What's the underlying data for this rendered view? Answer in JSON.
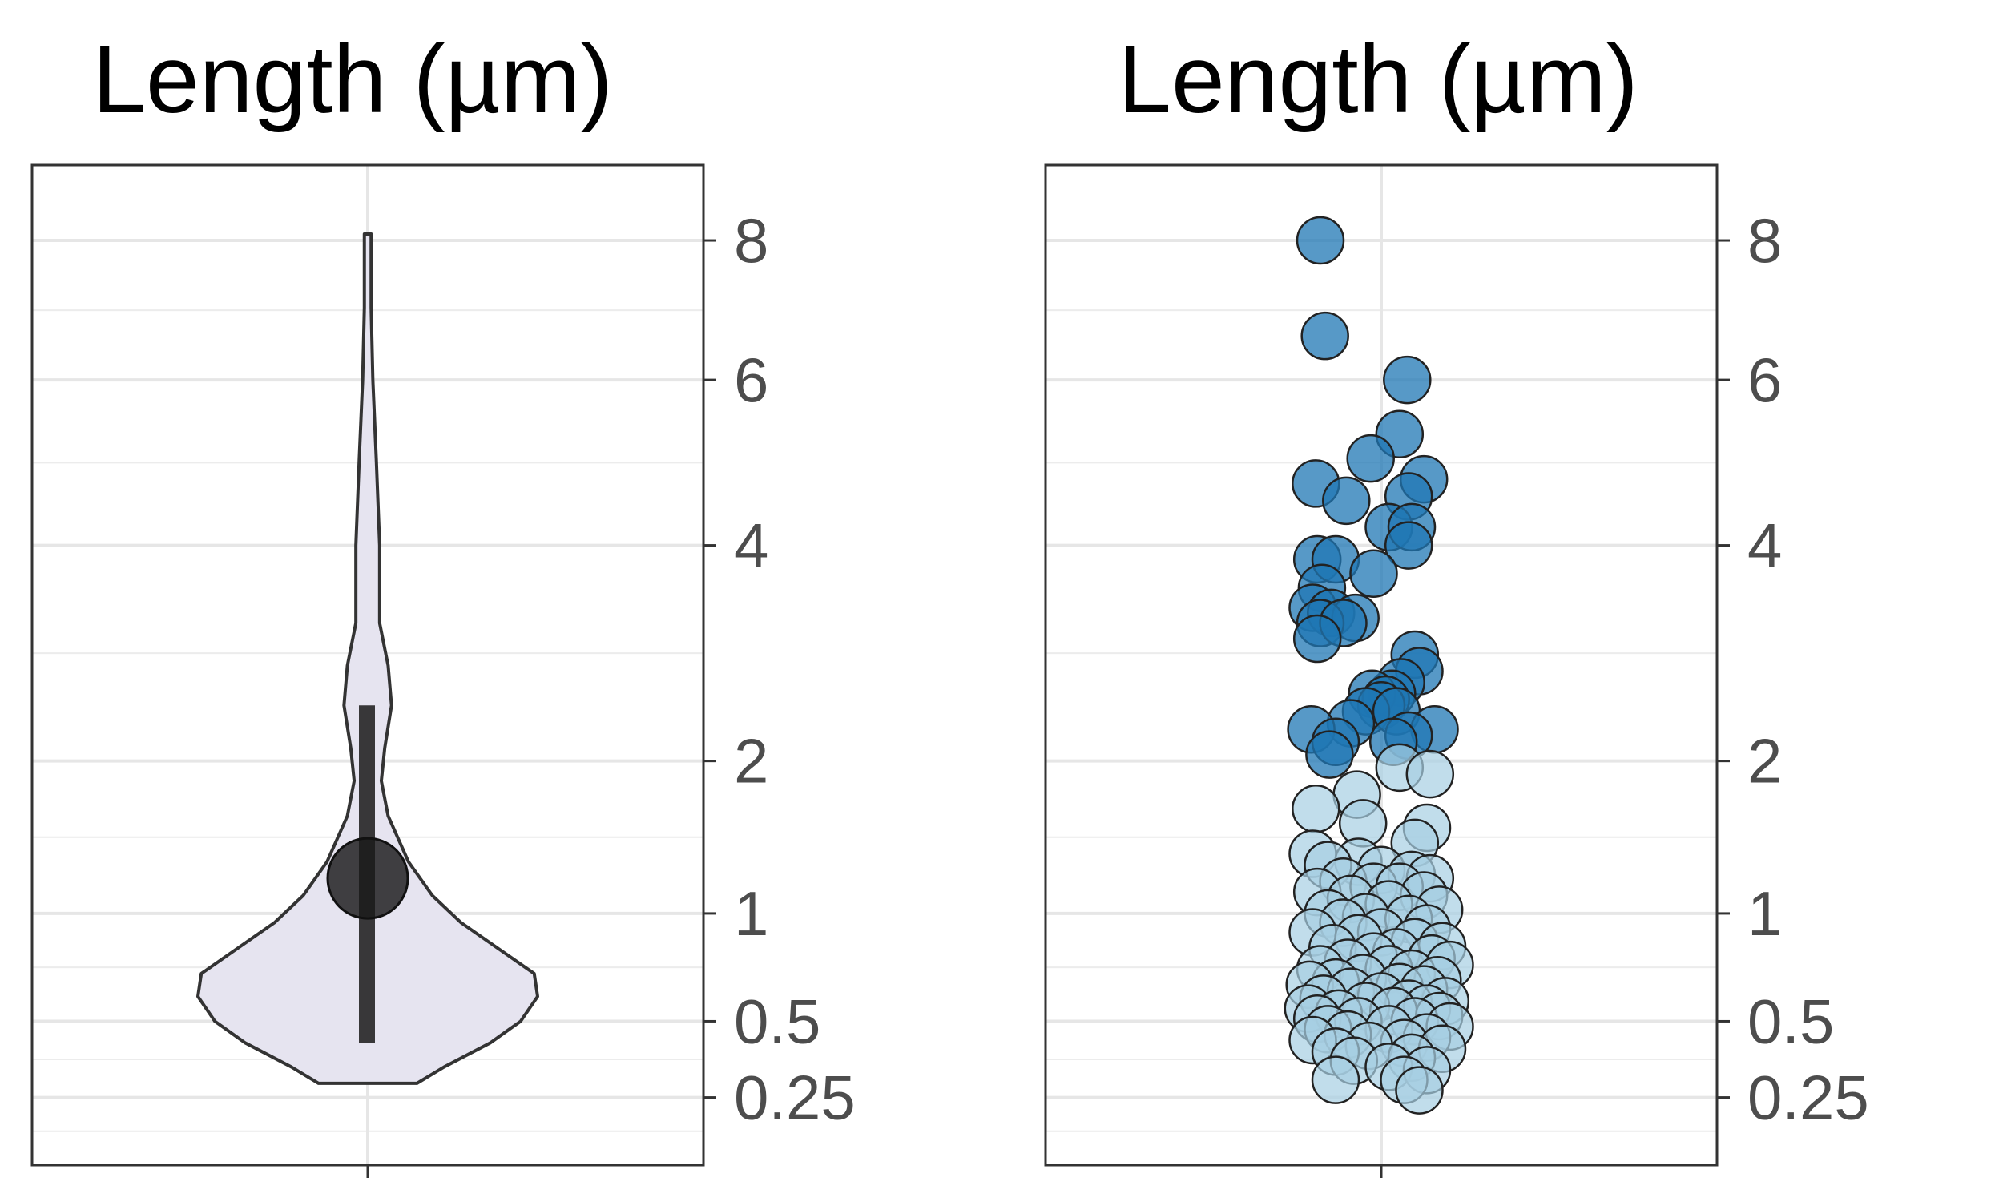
{
  "chart_data": [
    {
      "type": "violin",
      "title": "Length (µm)",
      "y_scale": "sqrt",
      "ylim": [
        0.1,
        9.2
      ],
      "y_ticks": [
        0.25,
        0.5,
        1,
        2,
        4,
        6,
        8
      ],
      "y_tick_labels": [
        "0.25",
        "0.5",
        "1",
        "2",
        "4",
        "6",
        "8"
      ],
      "y_axis_position": "right",
      "grid": true,
      "violin_fill": "#e6e4f0",
      "violin_stroke": "#333333",
      "summary": {
        "mean": 1.2,
        "range_low": 0.42,
        "range_high": 2.45,
        "color": "#1a1a1a"
      },
      "density_profile": [
        {
          "y": 0.29,
          "width": 0.29
        },
        {
          "y": 0.34,
          "width": 0.45
        },
        {
          "y": 0.42,
          "width": 0.72
        },
        {
          "y": 0.5,
          "width": 0.9
        },
        {
          "y": 0.6,
          "width": 1.0
        },
        {
          "y": 0.7,
          "width": 0.98
        },
        {
          "y": 0.8,
          "width": 0.8
        },
        {
          "y": 0.95,
          "width": 0.55
        },
        {
          "y": 1.1,
          "width": 0.38
        },
        {
          "y": 1.3,
          "width": 0.24
        },
        {
          "y": 1.6,
          "width": 0.12
        },
        {
          "y": 1.85,
          "width": 0.08
        },
        {
          "y": 2.1,
          "width": 0.1
        },
        {
          "y": 2.45,
          "width": 0.14
        },
        {
          "y": 2.8,
          "width": 0.12
        },
        {
          "y": 3.2,
          "width": 0.07
        },
        {
          "y": 4.0,
          "width": 0.07
        },
        {
          "y": 5.0,
          "width": 0.05
        },
        {
          "y": 6.0,
          "width": 0.03
        },
        {
          "y": 7.0,
          "width": 0.02
        },
        {
          "y": 8.1,
          "width": 0.02
        }
      ]
    },
    {
      "type": "scatter",
      "title": "Length (µm)",
      "y_scale": "sqrt",
      "ylim": [
        0.1,
        9.2
      ],
      "y_ticks": [
        0.25,
        0.5,
        1,
        2,
        4,
        6,
        8
      ],
      "y_tick_labels": [
        "0.25",
        "0.5",
        "1",
        "2",
        "4",
        "6",
        "8"
      ],
      "y_axis_position": "right",
      "grid": true,
      "colors": {
        "high": "#1f77b4",
        "low": "#a6cee3",
        "stroke": "#222222"
      },
      "color_threshold": 2.0,
      "points": [
        {
          "x": -0.4,
          "y": 8.0
        },
        {
          "x": -0.37,
          "y": 6.6
        },
        {
          "x": 0.17,
          "y": 6.0
        },
        {
          "x": 0.12,
          "y": 5.3
        },
        {
          "x": -0.07,
          "y": 5.0
        },
        {
          "x": 0.28,
          "y": 4.75
        },
        {
          "x": -0.43,
          "y": 4.7
        },
        {
          "x": 0.18,
          "y": 4.55
        },
        {
          "x": -0.23,
          "y": 4.5
        },
        {
          "x": 0.05,
          "y": 4.2
        },
        {
          "x": 0.2,
          "y": 4.2
        },
        {
          "x": 0.18,
          "y": 4.0
        },
        {
          "x": -0.42,
          "y": 3.85
        },
        {
          "x": -0.3,
          "y": 3.85
        },
        {
          "x": -0.05,
          "y": 3.7
        },
        {
          "x": -0.39,
          "y": 3.55
        },
        {
          "x": -0.45,
          "y": 3.35
        },
        {
          "x": -0.33,
          "y": 3.3
        },
        {
          "x": -0.17,
          "y": 3.25
        },
        {
          "x": -0.4,
          "y": 3.2
        },
        {
          "x": -0.25,
          "y": 3.2
        },
        {
          "x": -0.42,
          "y": 3.05
        },
        {
          "x": 0.22,
          "y": 2.9
        },
        {
          "x": 0.25,
          "y": 2.75
        },
        {
          "x": 0.13,
          "y": 2.65
        },
        {
          "x": 0.07,
          "y": 2.55
        },
        {
          "x": -0.06,
          "y": 2.55
        },
        {
          "x": 0.03,
          "y": 2.5
        },
        {
          "x": 0.0,
          "y": 2.45
        },
        {
          "x": -0.1,
          "y": 2.4
        },
        {
          "x": 0.1,
          "y": 2.4
        },
        {
          "x": -0.2,
          "y": 2.3
        },
        {
          "x": -0.46,
          "y": 2.25
        },
        {
          "x": 0.35,
          "y": 2.25
        },
        {
          "x": 0.18,
          "y": 2.2
        },
        {
          "x": -0.3,
          "y": 2.15
        },
        {
          "x": 0.08,
          "y": 2.15
        },
        {
          "x": -0.34,
          "y": 2.05
        },
        {
          "x": 0.12,
          "y": 1.95
        },
        {
          "x": 0.32,
          "y": 1.9
        },
        {
          "x": -0.16,
          "y": 1.75
        },
        {
          "x": -0.43,
          "y": 1.65
        },
        {
          "x": -0.12,
          "y": 1.55
        },
        {
          "x": 0.3,
          "y": 1.52
        },
        {
          "x": 0.22,
          "y": 1.42
        },
        {
          "x": -0.45,
          "y": 1.35
        },
        {
          "x": -0.15,
          "y": 1.3
        },
        {
          "x": -0.35,
          "y": 1.28
        },
        {
          "x": 0.0,
          "y": 1.25
        },
        {
          "x": 0.2,
          "y": 1.22
        },
        {
          "x": 0.32,
          "y": 1.2
        },
        {
          "x": -0.25,
          "y": 1.18
        },
        {
          "x": -0.05,
          "y": 1.15
        },
        {
          "x": 0.12,
          "y": 1.15
        },
        {
          "x": -0.42,
          "y": 1.12
        },
        {
          "x": 0.28,
          "y": 1.1
        },
        {
          "x": -0.2,
          "y": 1.08
        },
        {
          "x": 0.05,
          "y": 1.05
        },
        {
          "x": 0.38,
          "y": 1.02
        },
        {
          "x": -0.35,
          "y": 1.0
        },
        {
          "x": -0.1,
          "y": 0.98
        },
        {
          "x": 0.18,
          "y": 0.97
        },
        {
          "x": -0.25,
          "y": 0.95
        },
        {
          "x": 0.3,
          "y": 0.92
        },
        {
          "x": -0.45,
          "y": 0.9
        },
        {
          "x": 0.0,
          "y": 0.9
        },
        {
          "x": -0.15,
          "y": 0.87
        },
        {
          "x": 0.22,
          "y": 0.85
        },
        {
          "x": 0.4,
          "y": 0.83
        },
        {
          "x": -0.32,
          "y": 0.82
        },
        {
          "x": 0.1,
          "y": 0.8
        },
        {
          "x": -0.05,
          "y": 0.78
        },
        {
          "x": 0.33,
          "y": 0.77
        },
        {
          "x": -0.22,
          "y": 0.75
        },
        {
          "x": 0.45,
          "y": 0.74
        },
        {
          "x": -0.4,
          "y": 0.72
        },
        {
          "x": 0.05,
          "y": 0.72
        },
        {
          "x": 0.2,
          "y": 0.7
        },
        {
          "x": -0.12,
          "y": 0.68
        },
        {
          "x": 0.37,
          "y": 0.67
        },
        {
          "x": -0.3,
          "y": 0.66
        },
        {
          "x": -0.47,
          "y": 0.65
        },
        {
          "x": 0.12,
          "y": 0.64
        },
        {
          "x": 0.28,
          "y": 0.63
        },
        {
          "x": -0.2,
          "y": 0.62
        },
        {
          "x": 0.0,
          "y": 0.6
        },
        {
          "x": -0.38,
          "y": 0.59
        },
        {
          "x": 0.42,
          "y": 0.58
        },
        {
          "x": 0.18,
          "y": 0.57
        },
        {
          "x": -0.1,
          "y": 0.56
        },
        {
          "x": -0.48,
          "y": 0.55
        },
        {
          "x": 0.3,
          "y": 0.55
        },
        {
          "x": 0.08,
          "y": 0.54
        },
        {
          "x": -0.28,
          "y": 0.53
        },
        {
          "x": 0.38,
          "y": 0.52
        },
        {
          "x": -0.42,
          "y": 0.51
        },
        {
          "x": -0.15,
          "y": 0.5
        },
        {
          "x": 0.22,
          "y": 0.5
        },
        {
          "x": 0.45,
          "y": 0.48
        },
        {
          "x": -0.35,
          "y": 0.47
        },
        {
          "x": 0.05,
          "y": 0.47
        },
        {
          "x": -0.22,
          "y": 0.45
        },
        {
          "x": 0.3,
          "y": 0.44
        },
        {
          "x": -0.45,
          "y": 0.43
        },
        {
          "x": 0.15,
          "y": 0.42
        },
        {
          "x": -0.08,
          "y": 0.41
        },
        {
          "x": 0.4,
          "y": 0.4
        },
        {
          "x": -0.3,
          "y": 0.39
        },
        {
          "x": 0.2,
          "y": 0.37
        },
        {
          "x": -0.18,
          "y": 0.36
        },
        {
          "x": 0.05,
          "y": 0.34
        },
        {
          "x": 0.3,
          "y": 0.33
        },
        {
          "x": -0.3,
          "y": 0.3
        },
        {
          "x": 0.15,
          "y": 0.3
        },
        {
          "x": 0.25,
          "y": 0.27
        }
      ]
    }
  ]
}
